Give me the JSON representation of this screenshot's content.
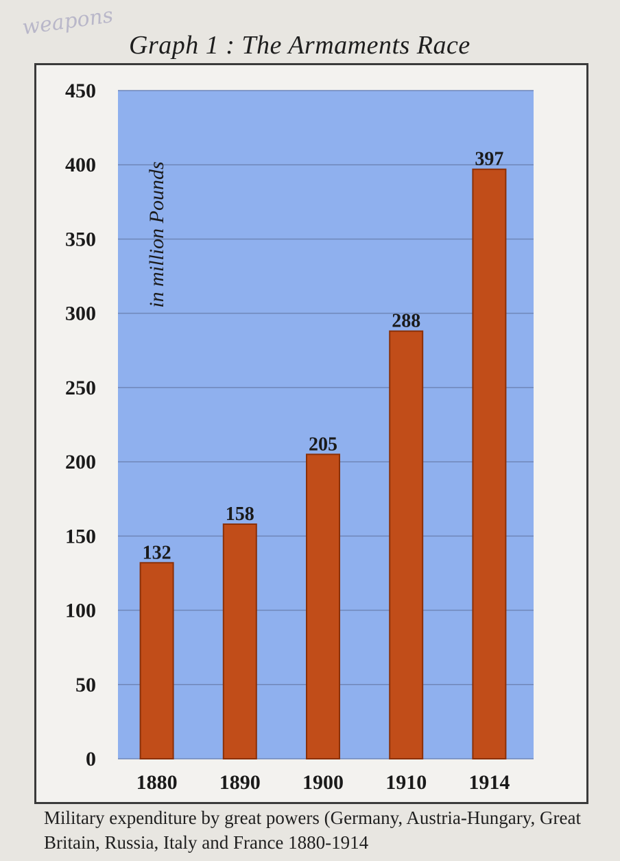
{
  "scribble": "weapons",
  "chart_data": {
    "type": "bar",
    "title": "Graph 1 : The Armaments Race",
    "ylabel": "in million Pounds",
    "xlabel": "",
    "categories": [
      "1880",
      "1890",
      "1900",
      "1910",
      "1914"
    ],
    "values": [
      132,
      158,
      205,
      288,
      397
    ],
    "ylim": [
      0,
      450
    ],
    "yticks": [
      "0",
      "50",
      "100",
      "150",
      "200",
      "250",
      "300",
      "350",
      "400",
      "450"
    ],
    "grid": true,
    "colors": {
      "plot_bg": "#8fb0ee",
      "bar": "#c14d19",
      "bar_edge": "#8a3008"
    }
  },
  "caption": "Military expenditure by great powers (Germany, Austria-Hungary, Great Britain, Russia, Italy and France 1880-1914"
}
